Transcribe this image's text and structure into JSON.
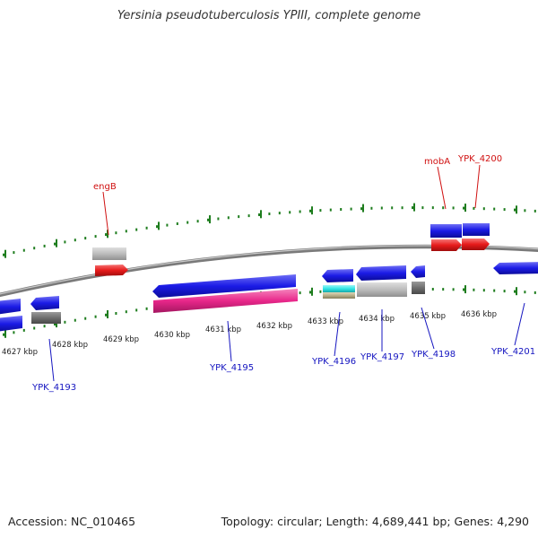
{
  "title": "Yersinia pseudotuberculosis YPIII, complete genome",
  "footer": {
    "accession": "Accession: NC_010465",
    "summary": "Topology: circular; Length: 4,689,441 bp; Genes: 4,290"
  },
  "colors": {
    "backbone": "#8a8a8a",
    "tick": "#1e7d1e",
    "cds_blue": "#1b1be6",
    "rna_red": "#e61b1b",
    "gene_grey": "#bcbcbc",
    "gene_dark": "#6e6e6e",
    "gene_pink": "#e8278a",
    "gene_cyan": "#31e6e6",
    "gene_tan": "#b9b08a",
    "label_top": "#d01010",
    "label_bottom": "#1414c0"
  },
  "scale": {
    "labels": [
      "4627 kbp",
      "4628 kbp",
      "4629 kbp",
      "4630 kbp",
      "4631 kbp",
      "4632 kbp",
      "4633 kbp",
      "4634 kbp",
      "4635 kbp",
      "4636 kbp"
    ]
  },
  "labels": {
    "top": [
      "engB",
      "mobA",
      "YPK_4200"
    ],
    "bottom": [
      "YPK_4193",
      "YPK_4195",
      "YPK_4196",
      "YPK_4197",
      "YPK_4198",
      "YPK_4201"
    ]
  }
}
